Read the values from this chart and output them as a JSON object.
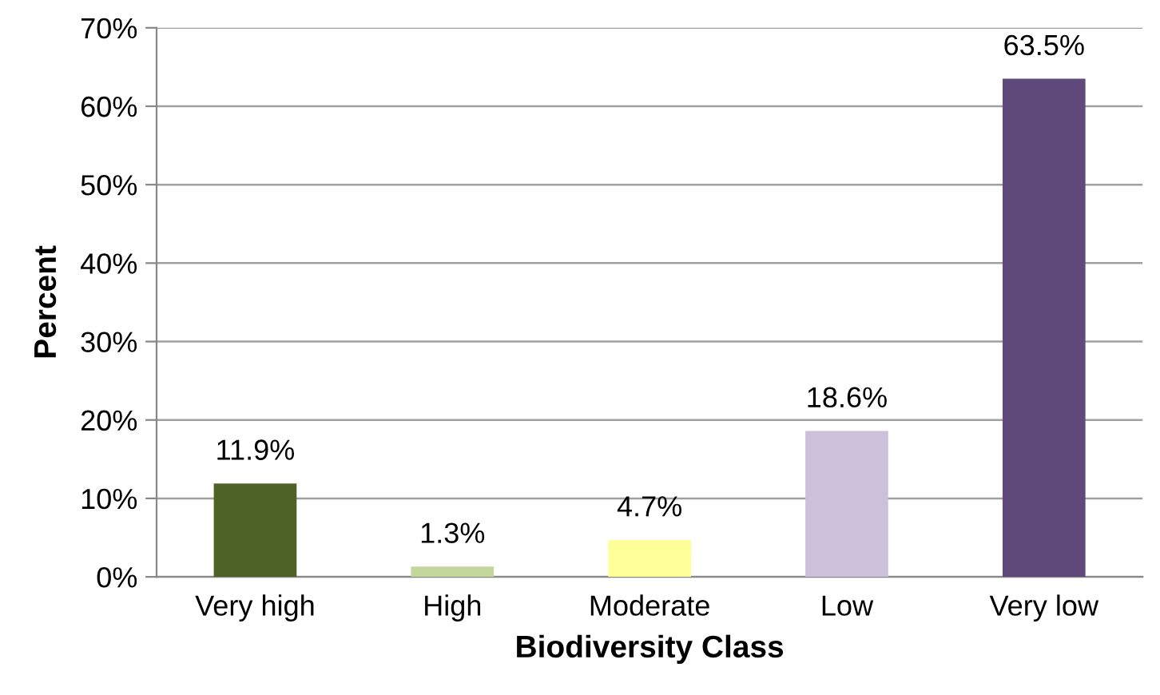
{
  "chart_data": {
    "type": "bar",
    "xlabel": "Biodiversity Class",
    "ylabel": "Percent",
    "categories": [
      "Very high",
      "High",
      "Moderate",
      "Low",
      "Very low"
    ],
    "values": [
      11.9,
      1.3,
      4.7,
      18.6,
      63.5
    ],
    "colors": [
      "#4f6228",
      "#c3d69b",
      "#ffff99",
      "#ccc0da",
      "#604a7b"
    ],
    "value_labels": [
      "11.9%",
      "1.3%",
      "4.7%",
      "18.6%",
      "63.5%"
    ],
    "ylim": [
      0,
      70
    ],
    "yticks": [
      {
        "value": 0,
        "label": "0%"
      },
      {
        "value": 10,
        "label": "10%"
      },
      {
        "value": 20,
        "label": "20%"
      },
      {
        "value": 30,
        "label": "30%"
      },
      {
        "value": 40,
        "label": "40%"
      },
      {
        "value": 50,
        "label": "50%"
      },
      {
        "value": 60,
        "label": "60%"
      },
      {
        "value": 70,
        "label": "70%"
      }
    ],
    "grid": "y"
  }
}
